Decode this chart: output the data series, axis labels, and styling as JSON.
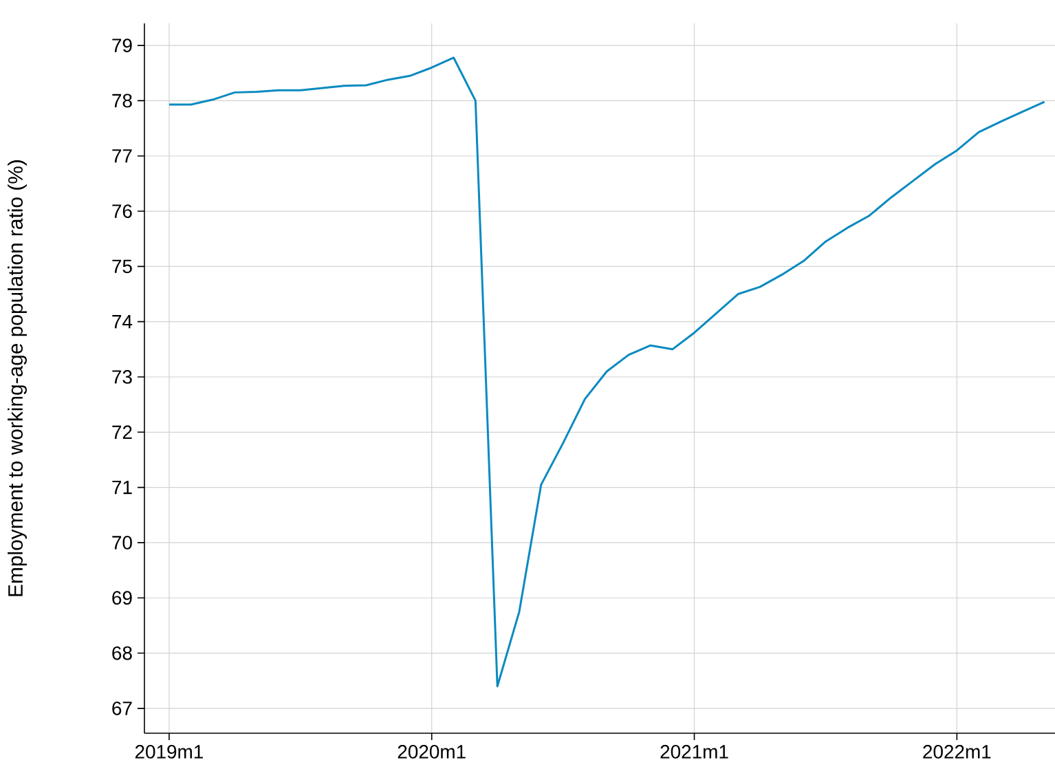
{
  "chart_data": {
    "type": "line",
    "ylabel": "Employment to working-age population ratio (%)",
    "x": [
      "2019-01",
      "2019-02",
      "2019-03",
      "2019-04",
      "2019-05",
      "2019-06",
      "2019-07",
      "2019-08",
      "2019-09",
      "2019-10",
      "2019-11",
      "2019-12",
      "2020-01",
      "2020-02",
      "2020-03",
      "2020-04",
      "2020-05",
      "2020-06",
      "2020-07",
      "2020-08",
      "2020-09",
      "2020-10",
      "2020-11",
      "2020-12",
      "2021-01",
      "2021-02",
      "2021-03",
      "2021-04",
      "2021-05",
      "2021-06",
      "2021-07",
      "2021-08",
      "2021-09",
      "2021-10",
      "2021-11",
      "2021-12",
      "2022-01",
      "2022-02",
      "2022-03",
      "2022-04",
      "2022-05"
    ],
    "series": [
      {
        "color": "#0a8ac0",
        "values": [
          77.93,
          77.93,
          78.02,
          78.15,
          78.16,
          78.19,
          78.19,
          78.23,
          78.27,
          78.28,
          78.38,
          78.45,
          78.6,
          78.78,
          78.0,
          67.4,
          68.75,
          71.05,
          71.8,
          72.6,
          73.1,
          73.4,
          73.57,
          73.5,
          73.8,
          74.15,
          74.5,
          74.63,
          74.85,
          75.1,
          75.45,
          75.7,
          75.92,
          76.25,
          76.55,
          76.85,
          77.1,
          77.43,
          77.62,
          77.8,
          77.98
        ]
      }
    ],
    "xlim": [
      "2018-11-28",
      "2022-05-16"
    ],
    "ylim": [
      66.55,
      79.4
    ],
    "xticks": [
      {
        "value": "2019-01",
        "label": "2019m1"
      },
      {
        "value": "2020-01",
        "label": "2020m1"
      },
      {
        "value": "2021-01",
        "label": "2021m1"
      },
      {
        "value": "2022-01",
        "label": "2022m1"
      }
    ],
    "yticks": [
      67,
      68,
      69,
      70,
      71,
      72,
      73,
      74,
      75,
      76,
      77,
      78,
      79
    ],
    "grid": true,
    "marker": "none",
    "line_style": "solid"
  }
}
